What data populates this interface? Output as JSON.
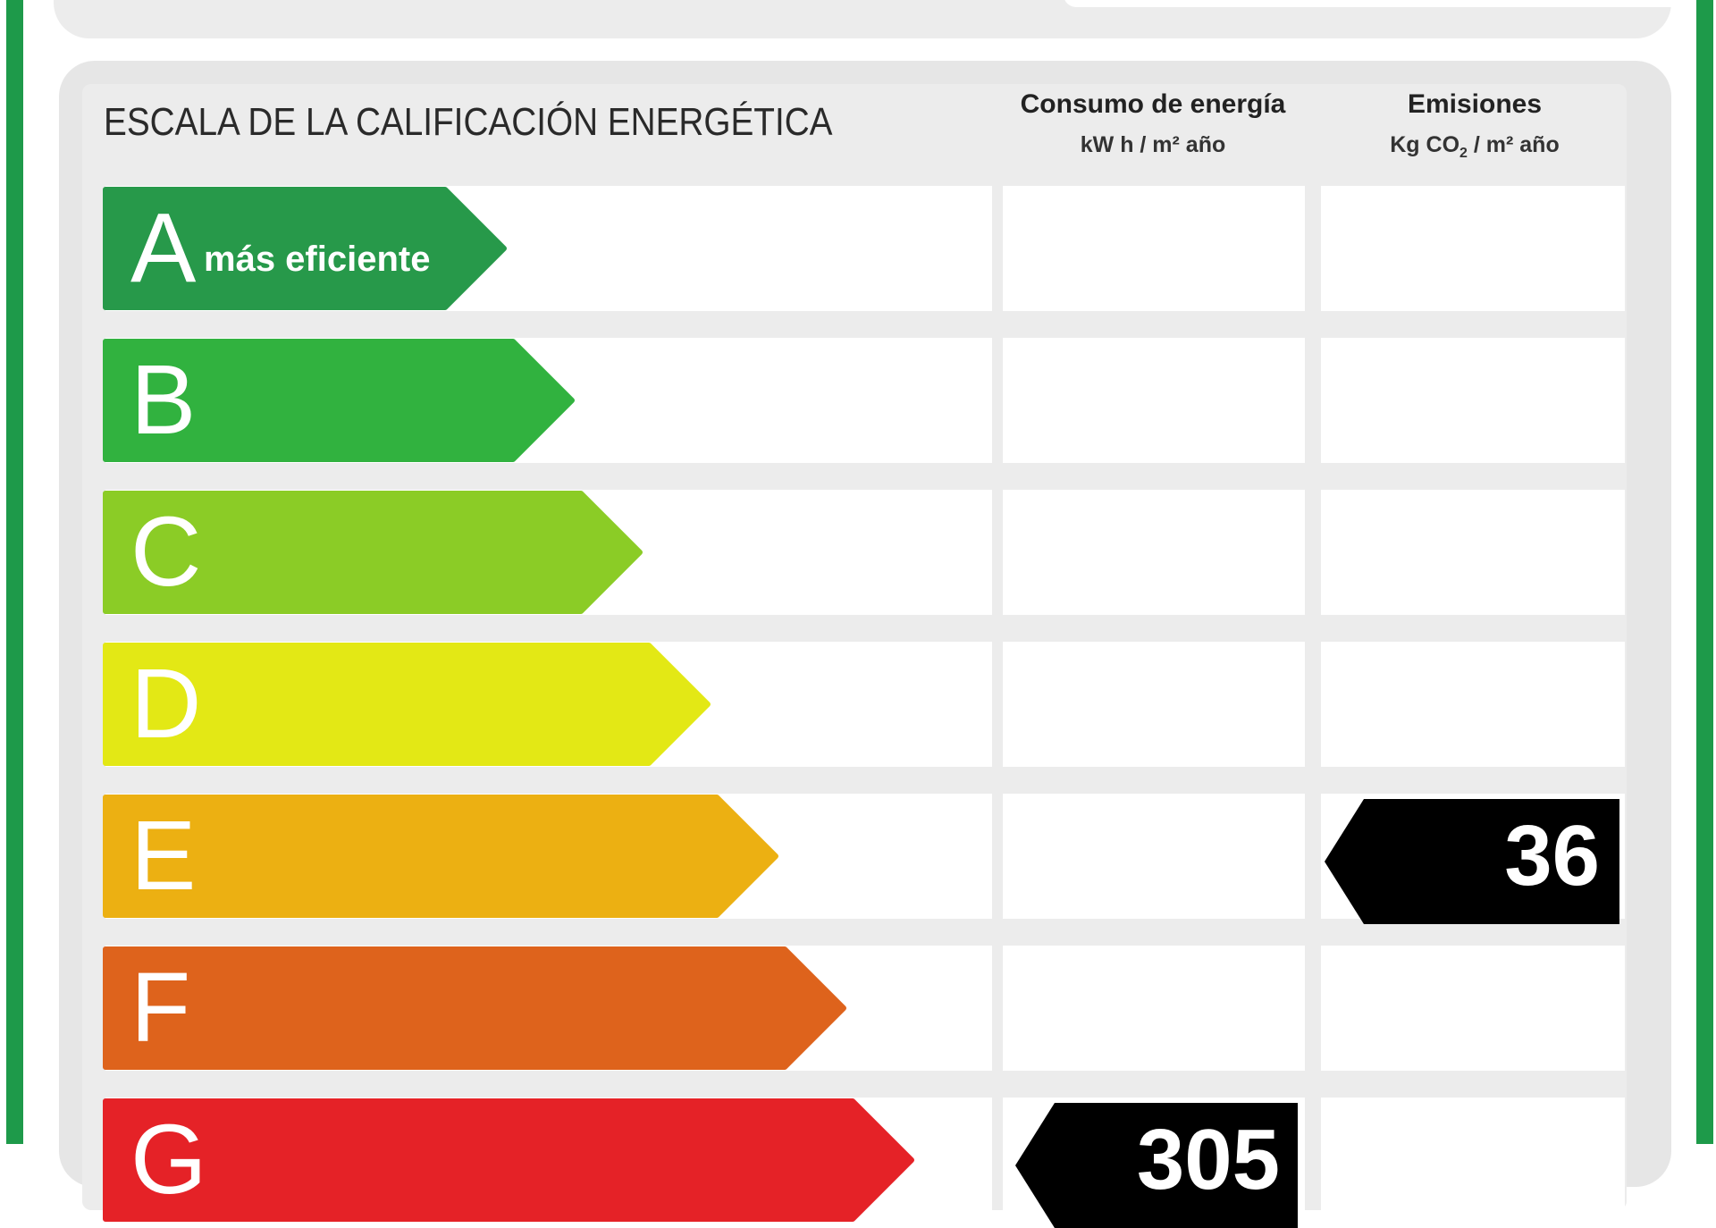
{
  "header": {
    "title": "ESCALA DE LA CALIFICACIÓN ENERGÉTICA",
    "energy_col": {
      "title": "Consumo de energía",
      "unit": "kW h / m² año"
    },
    "emissions_col": {
      "title": "Emisiones",
      "unit_prefix": "Kg CO",
      "unit_sub": "2",
      "unit_suffix": " / m² año"
    }
  },
  "rows": [
    {
      "letter": "A",
      "sublabel": "más eficiente",
      "color": "#27994a",
      "energy": "",
      "emissions": ""
    },
    {
      "letter": "B",
      "sublabel": "",
      "color": "#31b23f",
      "energy": "",
      "emissions": ""
    },
    {
      "letter": "C",
      "sublabel": "",
      "color": "#8bcc26",
      "energy": "",
      "emissions": ""
    },
    {
      "letter": "D",
      "sublabel": "",
      "color": "#e3e815",
      "energy": "",
      "emissions": ""
    },
    {
      "letter": "E",
      "sublabel": "",
      "color": "#ecb012",
      "energy": "",
      "emissions": "36"
    },
    {
      "letter": "F",
      "sublabel": "",
      "color": "#de631c",
      "energy": "",
      "emissions": ""
    },
    {
      "letter": "G",
      "sublabel": "",
      "color": "#e52227",
      "energy": "305",
      "emissions": ""
    }
  ],
  "colors": {
    "frame_green": "#1e9a4a",
    "panel_gray": "#ececec",
    "indicator": "#000000"
  }
}
